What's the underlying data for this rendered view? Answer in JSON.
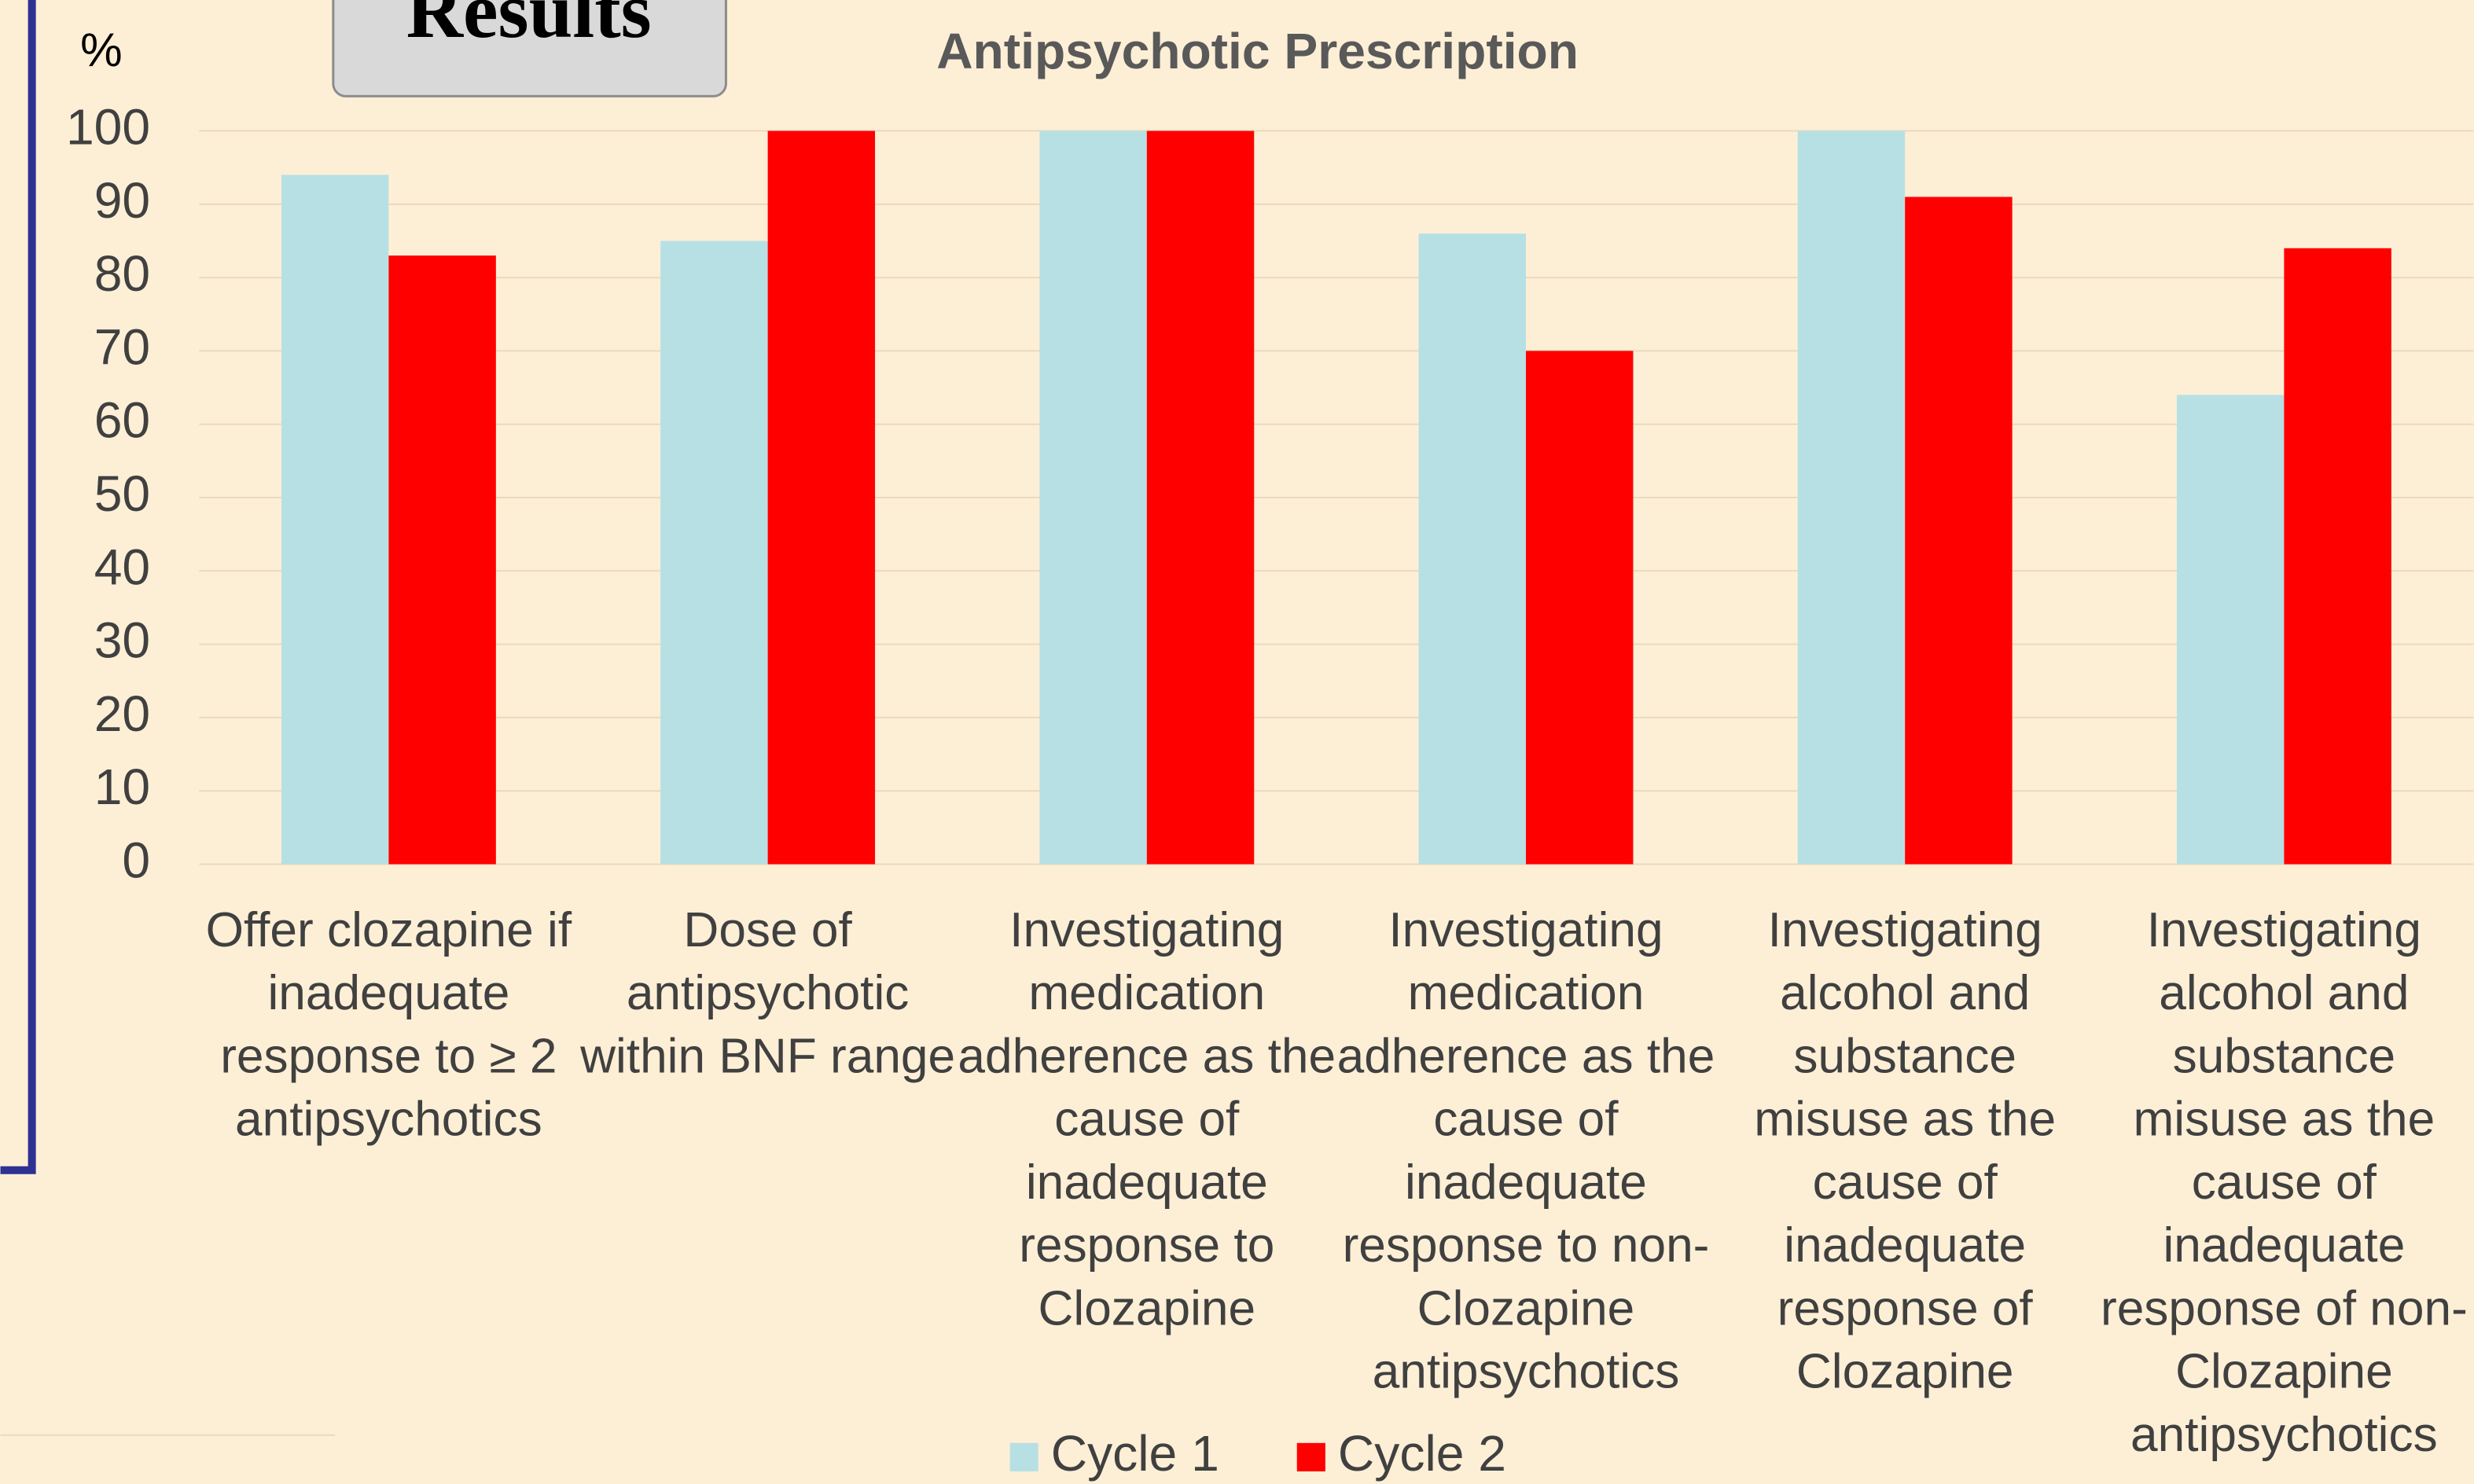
{
  "header": {
    "title": "Results"
  },
  "chart_data": {
    "type": "bar",
    "title": "Antipsychotic Prescription",
    "y_label": "%",
    "categories": [
      "Offer clozapine if inadequate response to ≥ 2 antipsychotics",
      "Dose of antipsychotic within BNF range",
      "Investigating medication adherence as the cause of inadequate response to Clozapine",
      "Investigating medication adherence as the cause of inadequate response to non-Clozapine antipsychotics",
      "Investigating alcohol and substance misuse as the cause of inadequate response of Clozapine",
      "Investigating alcohol and substance misuse as the cause of inadequate response of non-Clozapine antipsychotics"
    ],
    "series": [
      {
        "name": "Cycle 1",
        "color": "#b7e0e4",
        "values": [
          94,
          85,
          100,
          86,
          100,
          64
        ]
      },
      {
        "name": "Cycle 2",
        "color": "#ff0000",
        "values": [
          83,
          100,
          100,
          70,
          91,
          84
        ]
      }
    ],
    "ylim": [
      0,
      100
    ],
    "yticks": [
      0,
      10,
      20,
      30,
      40,
      50,
      60,
      70,
      80,
      90,
      100
    ],
    "grid": true,
    "legend": "bottom"
  }
}
